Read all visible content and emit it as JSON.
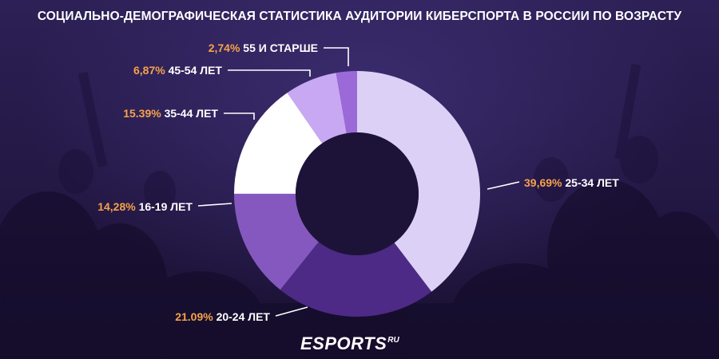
{
  "title": "СОЦИАЛЬНО-ДЕМОГРАФИЧЕСКАЯ СТАТИСТИКА АУДИТОРИИ КИБЕРСПОРТА В РОССИИ ПО ВОЗРАСТУ",
  "logo": {
    "main": "ESPORTS",
    "suffix": "RU"
  },
  "chart_data": {
    "type": "pie",
    "style": "donut",
    "slices": [
      {
        "label": "25-34 ЛЕТ",
        "value_text": "39,69%",
        "value": 39.69,
        "color": "#ddd0f6"
      },
      {
        "label": "20-24 ЛЕТ",
        "value_text": "21.09%",
        "value": 21.09,
        "color": "#4d2a86"
      },
      {
        "label": "16-19 ЛЕТ",
        "value_text": "14,28%",
        "value": 14.28,
        "color": "#8558bf"
      },
      {
        "label": "35-44 ЛЕТ",
        "value_text": "15.39%",
        "value": 15.39,
        "color": "#ffffff"
      },
      {
        "label": "45-54 ЛЕТ",
        "value_text": "6,87%",
        "value": 6.87,
        "color": "#c8a8f2"
      },
      {
        "label": "55 И СТАРШЕ",
        "value_text": "2,74%",
        "value": 2.74,
        "color": "#9b6ad8"
      }
    ],
    "colors": {
      "percent": "#f5a24a",
      "text": "#ffffff",
      "leader": "#ffffff"
    }
  }
}
